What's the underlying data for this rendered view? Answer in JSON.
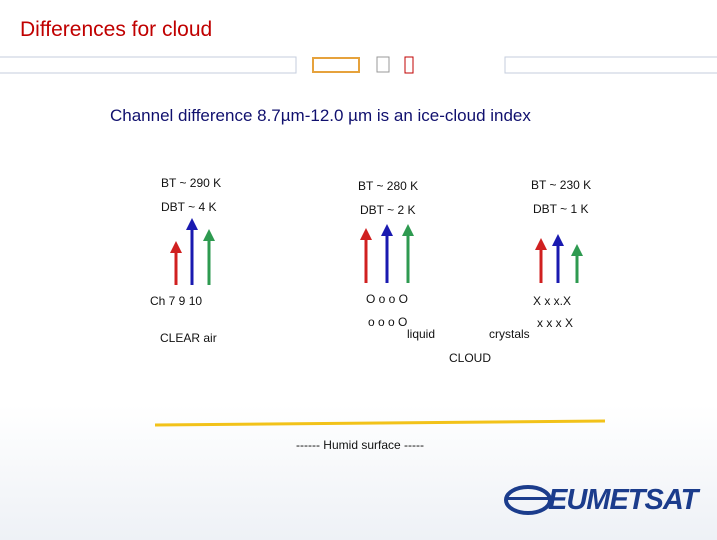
{
  "header": {
    "title": "Differences for cloud",
    "subtitle": "Channel difference 8.7µm-12.0 µm is an ice-cloud index"
  },
  "columns": [
    {
      "bt": "BT ~ 290 K",
      "dbt": "DBT ~ 4 K"
    },
    {
      "bt": "BT ~ 280 K",
      "dbt": "DBT ~ 2 K"
    },
    {
      "bt": "BT ~ 230 K",
      "dbt": "DBT ~ 1 K"
    }
  ],
  "labels": {
    "channels": "Ch 7   9  10",
    "clear_air": "CLEAR air",
    "droplets_1": "O o o O",
    "droplets_2": "o o o O",
    "liquid": "liquid",
    "ice_1": "X x  x.X",
    "ice_2": "x x x X",
    "crystals": "crystals",
    "cloud": "CLOUD",
    "surface": "------   Humid surface   -----"
  },
  "footer": {
    "logo": "EUMETSAT"
  }
}
